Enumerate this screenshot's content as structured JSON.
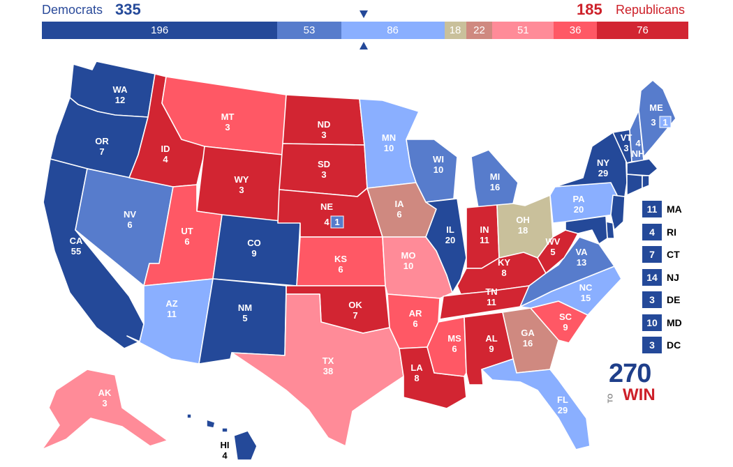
{
  "header": {
    "dem_label": "Democrats",
    "dem_total": "335",
    "rep_total": "185",
    "rep_label": "Republicans"
  },
  "bar_segments": [
    {
      "value": 196,
      "label": "196",
      "color": "#244999"
    },
    {
      "value": 53,
      "label": "53",
      "color": "#577ccc"
    },
    {
      "value": 86,
      "label": "86",
      "color": "#8aafff"
    },
    {
      "value": 18,
      "label": "18",
      "color": "#c9c09b"
    },
    {
      "value": 22,
      "label": "22",
      "color": "#cf8980"
    },
    {
      "value": 51,
      "label": "51",
      "color": "#ff8b98"
    },
    {
      "value": 36,
      "label": "36",
      "color": "#ff5865"
    },
    {
      "value": 76,
      "label": "76",
      "color": "#d22532"
    }
  ],
  "colors": {
    "safe_dem": "#244999",
    "likely_dem": "#577ccc",
    "lean_dem": "#8aafff",
    "tossup": "#c9c09b",
    "tilt_rep": "#cf8980",
    "lean_rep": "#ff8b98",
    "likely_rep": "#ff5865",
    "safe_rep": "#d22532"
  },
  "states": [
    {
      "abbr": "WA",
      "ev": "12",
      "rating": "safe_dem"
    },
    {
      "abbr": "OR",
      "ev": "7",
      "rating": "safe_dem"
    },
    {
      "abbr": "CA",
      "ev": "55",
      "rating": "safe_dem"
    },
    {
      "abbr": "ID",
      "ev": "4",
      "rating": "safe_rep"
    },
    {
      "abbr": "NV",
      "ev": "6",
      "rating": "likely_dem"
    },
    {
      "abbr": "MT",
      "ev": "3",
      "rating": "likely_rep"
    },
    {
      "abbr": "WY",
      "ev": "3",
      "rating": "safe_rep"
    },
    {
      "abbr": "UT",
      "ev": "6",
      "rating": "likely_rep"
    },
    {
      "abbr": "AZ",
      "ev": "11",
      "rating": "lean_dem"
    },
    {
      "abbr": "CO",
      "ev": "9",
      "rating": "safe_dem"
    },
    {
      "abbr": "NM",
      "ev": "5",
      "rating": "safe_dem"
    },
    {
      "abbr": "ND",
      "ev": "3",
      "rating": "safe_rep"
    },
    {
      "abbr": "SD",
      "ev": "3",
      "rating": "safe_rep"
    },
    {
      "abbr": "NE",
      "ev": "4",
      "rating": "safe_rep"
    },
    {
      "abbr": "KS",
      "ev": "6",
      "rating": "likely_rep"
    },
    {
      "abbr": "OK",
      "ev": "7",
      "rating": "safe_rep"
    },
    {
      "abbr": "TX",
      "ev": "38",
      "rating": "lean_rep"
    },
    {
      "abbr": "MN",
      "ev": "10",
      "rating": "lean_dem"
    },
    {
      "abbr": "IA",
      "ev": "6",
      "rating": "tilt_rep"
    },
    {
      "abbr": "MO",
      "ev": "10",
      "rating": "lean_rep"
    },
    {
      "abbr": "AR",
      "ev": "6",
      "rating": "likely_rep"
    },
    {
      "abbr": "LA",
      "ev": "8",
      "rating": "safe_rep"
    },
    {
      "abbr": "WI",
      "ev": "10",
      "rating": "likely_dem"
    },
    {
      "abbr": "IL",
      "ev": "20",
      "rating": "safe_dem"
    },
    {
      "abbr": "MI",
      "ev": "16",
      "rating": "likely_dem"
    },
    {
      "abbr": "IN",
      "ev": "11",
      "rating": "safe_rep"
    },
    {
      "abbr": "OH",
      "ev": "18",
      "rating": "tossup"
    },
    {
      "abbr": "KY",
      "ev": "8",
      "rating": "safe_rep"
    },
    {
      "abbr": "TN",
      "ev": "11",
      "rating": "safe_rep"
    },
    {
      "abbr": "MS",
      "ev": "6",
      "rating": "likely_rep"
    },
    {
      "abbr": "AL",
      "ev": "9",
      "rating": "safe_rep"
    },
    {
      "abbr": "GA",
      "ev": "16",
      "rating": "tilt_rep"
    },
    {
      "abbr": "FL",
      "ev": "29",
      "rating": "lean_dem"
    },
    {
      "abbr": "SC",
      "ev": "9",
      "rating": "likely_rep"
    },
    {
      "abbr": "NC",
      "ev": "15",
      "rating": "lean_dem"
    },
    {
      "abbr": "VA",
      "ev": "13",
      "rating": "likely_dem"
    },
    {
      "abbr": "WV",
      "ev": "5",
      "rating": "safe_rep"
    },
    {
      "abbr": "PA",
      "ev": "20",
      "rating": "lean_dem"
    },
    {
      "abbr": "NY",
      "ev": "29",
      "rating": "safe_dem"
    },
    {
      "abbr": "VT",
      "ev": "3",
      "rating": "safe_dem"
    },
    {
      "abbr": "NH",
      "ev": "4",
      "rating": "likely_dem"
    },
    {
      "abbr": "ME",
      "ev": "3",
      "rating": "likely_dem"
    },
    {
      "abbr": "AK",
      "ev": "3",
      "rating": "lean_rep"
    },
    {
      "abbr": "HI",
      "ev": "4",
      "rating": "safe_dem"
    }
  ],
  "district_boxes": {
    "ne_cd2": "1",
    "me_cd2": "1"
  },
  "northeast_list": [
    {
      "ev": "11",
      "abbr": "MA"
    },
    {
      "ev": "4",
      "abbr": "RI"
    },
    {
      "ev": "7",
      "abbr": "CT"
    },
    {
      "ev": "14",
      "abbr": "NJ"
    },
    {
      "ev": "3",
      "abbr": "DE"
    },
    {
      "ev": "10",
      "abbr": "MD"
    },
    {
      "ev": "3",
      "abbr": "DC"
    }
  ],
  "logo": {
    "number": "270",
    "to": "TO",
    "win": "WIN"
  }
}
